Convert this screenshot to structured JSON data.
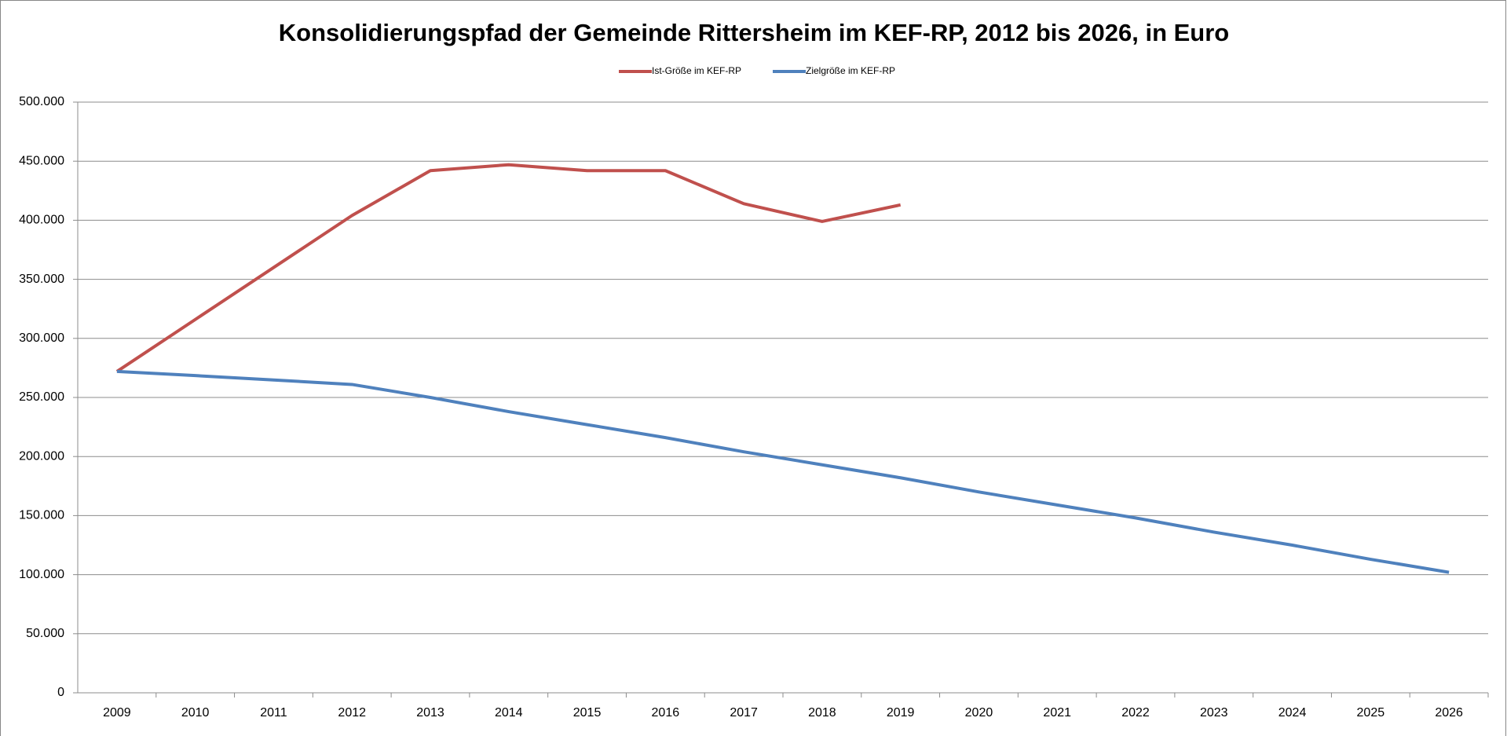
{
  "chart_data": {
    "type": "line",
    "title": "Konsolidierungspfad der Gemeinde Rittersheim im KEF-RP, 2012 bis 2026, in Euro",
    "categories": [
      "2009",
      "2010",
      "2011",
      "2012",
      "2013",
      "2014",
      "2015",
      "2016",
      "2017",
      "2018",
      "2019",
      "2020",
      "2021",
      "2022",
      "2023",
      "2024",
      "2025",
      "2026"
    ],
    "series": [
      {
        "name": "Ist-Größe im KEF-RP",
        "color": "#c0504d",
        "values": [
          272000,
          316000,
          360000,
          404000,
          442000,
          447000,
          442000,
          442000,
          414000,
          399000,
          413000,
          null,
          null,
          null,
          null,
          null,
          null,
          null
        ]
      },
      {
        "name": "Zielgröße im KEF-RP",
        "color": "#4f81bd",
        "values": [
          272000,
          268500,
          264800,
          261000,
          250000,
          238000,
          227000,
          216000,
          204000,
          193000,
          182000,
          170000,
          159000,
          148000,
          136000,
          125000,
          113000,
          102000
        ]
      }
    ],
    "ylim": [
      0,
      500000
    ],
    "yticks": [
      0,
      {
        "value": 50000,
        "label": "50.000"
      },
      {
        "value": 100000,
        "label": "100.000"
      },
      {
        "value": 150000,
        "label": "150.000"
      },
      {
        "value": 200000,
        "label": "200.000"
      },
      {
        "value": 250000,
        "label": "250.000"
      },
      {
        "value": 300000,
        "label": "300.000"
      },
      {
        "value": 350000,
        "label": "350.000"
      },
      {
        "value": 400000,
        "label": "400.000"
      },
      {
        "value": 450000,
        "label": "450.000"
      },
      {
        "value": 500000,
        "label": "500.000"
      }
    ],
    "grid": true
  }
}
